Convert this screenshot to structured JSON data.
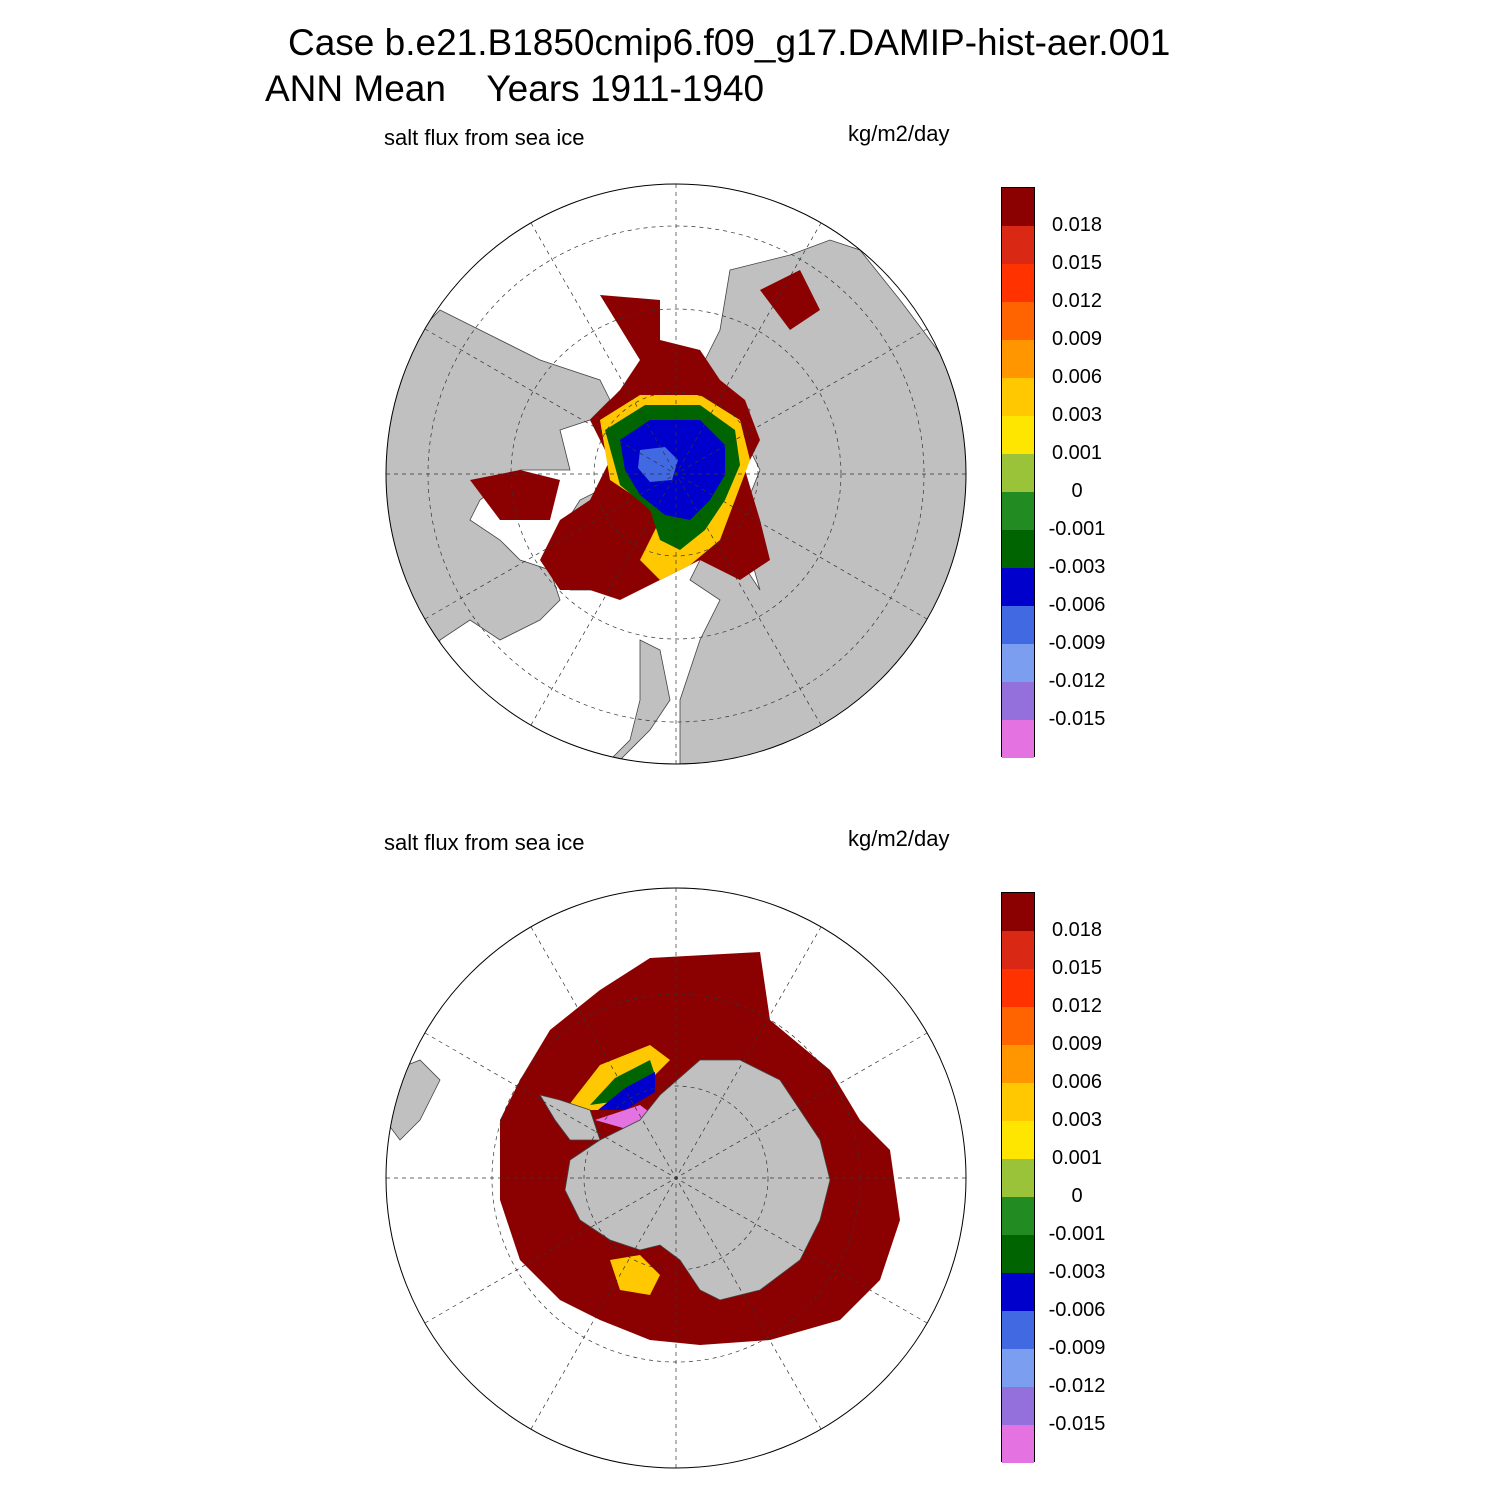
{
  "header": {
    "line1": "Case b.e21.B1850cmip6.f09_g17.DAMIP-hist-aer.001",
    "line2": "ANN Mean    Years 1911-1940"
  },
  "panels": [
    {
      "id": "north",
      "variable": "salt flux from sea ice",
      "units": "kg/m2/day"
    },
    {
      "id": "south",
      "variable": "salt flux from sea ice",
      "units": "kg/m2/day"
    }
  ],
  "colorbar": {
    "labels": [
      "0.018",
      "0.015",
      "0.012",
      "0.009",
      "0.006",
      "0.003",
      "0.001",
      "0",
      "-0.001",
      "-0.003",
      "-0.006",
      "-0.009",
      "-0.012",
      "-0.015"
    ],
    "colors": [
      "#8b0000",
      "#d92914",
      "#ff3200",
      "#ff6400",
      "#ff9600",
      "#ffc800",
      "#ffe600",
      "#9ac33a",
      "#228b22",
      "#006400",
      "#0000cd",
      "#4169e1",
      "#7b9ef0",
      "#9370db",
      "#e472e0"
    ]
  },
  "map_colors": {
    "land": "#c0c0c0",
    "ocean": "#ffffff"
  }
}
